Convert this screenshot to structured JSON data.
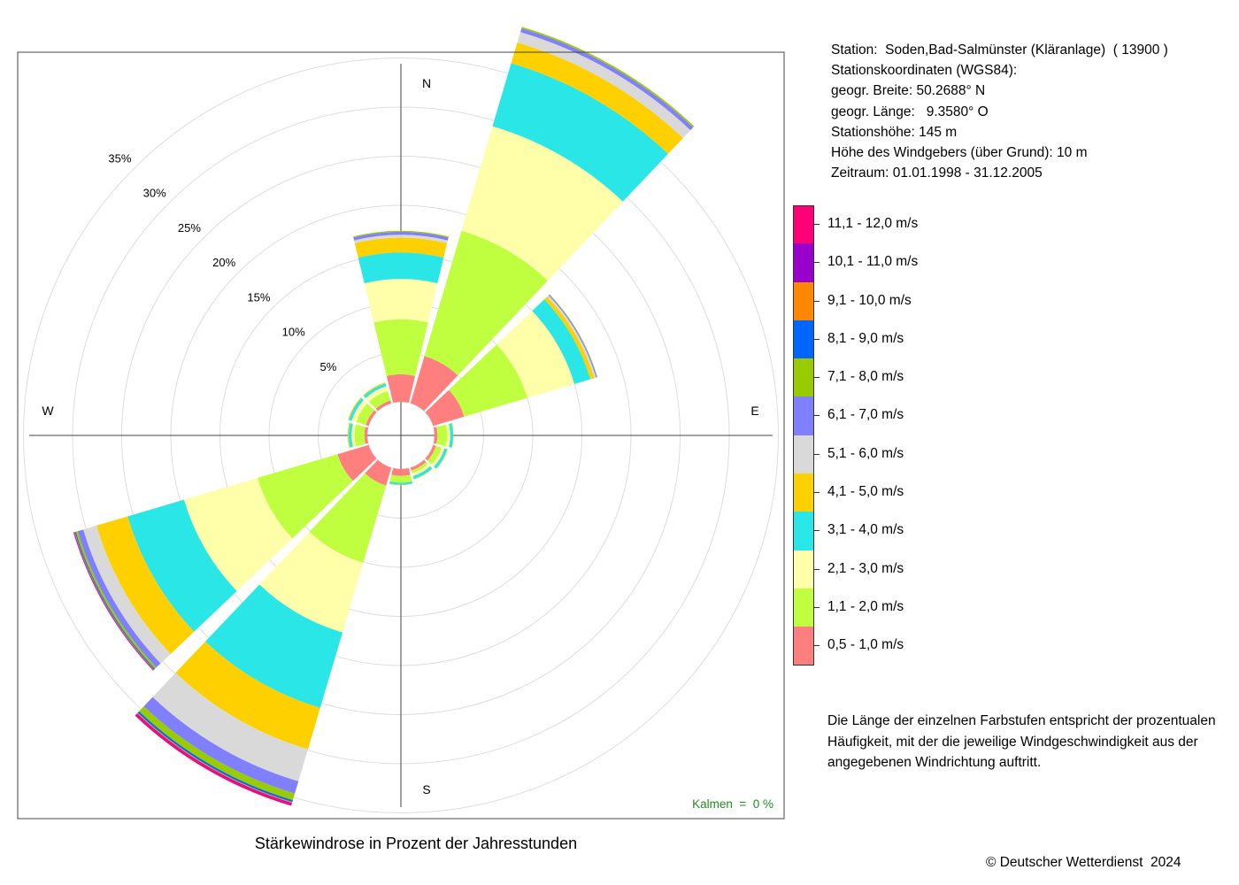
{
  "chart_data": {
    "type": "windrose",
    "title": "Stärkewindrose in Prozent der Jahresstunden",
    "directions_deg": [
      0,
      30,
      60,
      90,
      120,
      150,
      180,
      210,
      240,
      270,
      300,
      330
    ],
    "compass": {
      "north": "N",
      "east": "E",
      "south": "S",
      "west": "W"
    },
    "rings": [
      {
        "value": 5,
        "label": "5%"
      },
      {
        "value": 10,
        "label": "10%"
      },
      {
        "value": 15,
        "label": "15%"
      },
      {
        "value": 20,
        "label": "20%"
      },
      {
        "value": 25,
        "label": "25%"
      },
      {
        "value": 30,
        "label": "30%"
      },
      {
        "value": 35,
        "label": "35%"
      }
    ],
    "rmax": 35,
    "calm_label": "Kalmen  =  0 %",
    "series": [
      {
        "name": "0,5 - 1,0 m/s",
        "color": "#FF7F7F",
        "values": [
          2.8,
          5.0,
          3.3,
          0.3,
          0.3,
          0.3,
          0.7,
          1.9,
          3.3,
          0.3,
          0.3,
          0.3
        ]
      },
      {
        "name": "1,1 - 2,0 m/s",
        "color": "#BFFF3F",
        "values": [
          5.6,
          13.3,
          6.7,
          1.0,
          0.6,
          0.3,
          0.7,
          8.2,
          8.5,
          1.0,
          1.0,
          1.0
        ]
      },
      {
        "name": "2,1 - 3,0 m/s",
        "color": "#FFFFAA",
        "values": [
          4.1,
          11.1,
          5.0,
          0.3,
          0.3,
          0.3,
          0.0,
          7.4,
          7.8,
          0.3,
          0.5,
          0.5
        ]
      },
      {
        "name": "3,1 - 4,0 m/s",
        "color": "#2BE6E6",
        "values": [
          2.7,
          6.7,
          1.7,
          0.3,
          0.3,
          0.3,
          0.2,
          8.0,
          6.0,
          0.3,
          0.3,
          0.3
        ]
      },
      {
        "name": "4,1 - 5,0 m/s",
        "color": "#FFD000",
        "values": [
          1.5,
          2.2,
          0.4,
          0.05,
          0.05,
          0.05,
          0.05,
          4.4,
          3.3,
          0.1,
          0.1,
          0.1
        ]
      },
      {
        "name": "5,1 - 6,0 m/s",
        "color": "#D9D9D9",
        "values": [
          0.3,
          1.1,
          0.2,
          0.0,
          0.0,
          0.0,
          0.0,
          3.4,
          1.4,
          0.0,
          0.0,
          0.0
        ]
      },
      {
        "name": "6,1 - 7,0 m/s",
        "color": "#8080FF",
        "values": [
          0.3,
          0.4,
          0.1,
          0.0,
          0.0,
          0.0,
          0.0,
          1.3,
          0.6,
          0.0,
          0.0,
          0.0
        ]
      },
      {
        "name": "7,1 - 8,0 m/s",
        "color": "#99CC00",
        "values": [
          0.1,
          0.15,
          0.05,
          0.0,
          0.0,
          0.0,
          0.0,
          0.7,
          0.2,
          0.0,
          0.0,
          0.0
        ]
      },
      {
        "name": "8,1 - 9,0 m/s",
        "color": "#0066FF",
        "values": [
          0.0,
          0.0,
          0.0,
          0.0,
          0.0,
          0.0,
          0.0,
          0.2,
          0.1,
          0.0,
          0.0,
          0.0
        ]
      },
      {
        "name": "9,1 - 10,0 m/s",
        "color": "#FF8800",
        "values": [
          0.0,
          0.0,
          0.0,
          0.0,
          0.0,
          0.0,
          0.0,
          0.1,
          0.05,
          0.0,
          0.0,
          0.0
        ]
      },
      {
        "name": "10,1 - 11,0 m/s",
        "color": "#9900CC",
        "values": [
          0.0,
          0.0,
          0.0,
          0.0,
          0.0,
          0.0,
          0.0,
          0.1,
          0.05,
          0.0,
          0.0,
          0.0
        ]
      },
      {
        "name": "11,1 - 12,0 m/s",
        "color": "#FF0077",
        "values": [
          0.0,
          0.0,
          0.0,
          0.0,
          0.0,
          0.0,
          0.0,
          0.2,
          0.05,
          0.0,
          0.0,
          0.0
        ]
      }
    ]
  },
  "station_info": [
    "Station:  Soden,Bad-Salmünster (Kläranlage)  ( 13900 )",
    "Stationskoordinaten (WGS84):",
    "geogr. Breite: 50.2688° N",
    "geogr. Länge:   9.3580° O",
    "Stationshöhe: 145 m",
    "Höhe des Windgebers (über Grund): 10 m",
    "Zeitraum: 01.01.1998 - 31.12.2005"
  ],
  "note_lines": [
    "Die Länge der einzelnen Farbstufen entspricht der prozentualen",
    "Häufigkeit, mit der die jeweilige Windgeschwindigkeit aus der",
    "angegebenen Windrichtung auftritt."
  ],
  "copyright": "© Deutscher Wetterdienst  2024",
  "colors": {
    "axis": "#000000",
    "grid": "#DDDDDD",
    "calm_text": "#228B22"
  }
}
